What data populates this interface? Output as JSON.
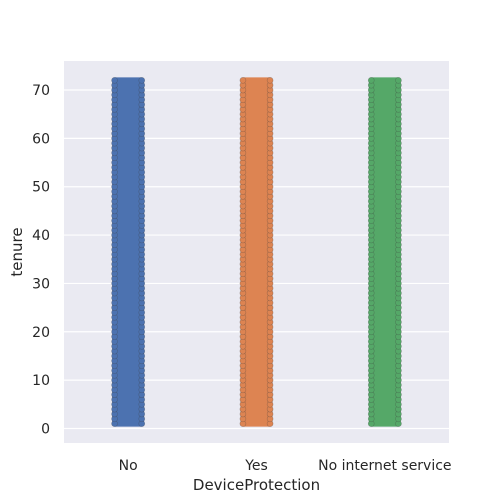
{
  "chart_data": {
    "type": "scatter",
    "subtype": "strip",
    "title": "",
    "xlabel": "DeviceProtection",
    "ylabel": "tenure",
    "categories": [
      "No",
      "Yes",
      "No internet service"
    ],
    "ylim": [
      -3,
      76
    ],
    "yticks": [
      0,
      10,
      20,
      30,
      40,
      50,
      60,
      70
    ],
    "grid": true,
    "background": "#EAEAF2",
    "colors": [
      "#4C72B0",
      "#DD8452",
      "#55A868"
    ],
    "series": [
      {
        "category": "No",
        "min": 1,
        "max": 72
      },
      {
        "category": "Yes",
        "min": 1,
        "max": 72
      },
      {
        "category": "No internet service",
        "min": 1,
        "max": 72
      }
    ]
  }
}
